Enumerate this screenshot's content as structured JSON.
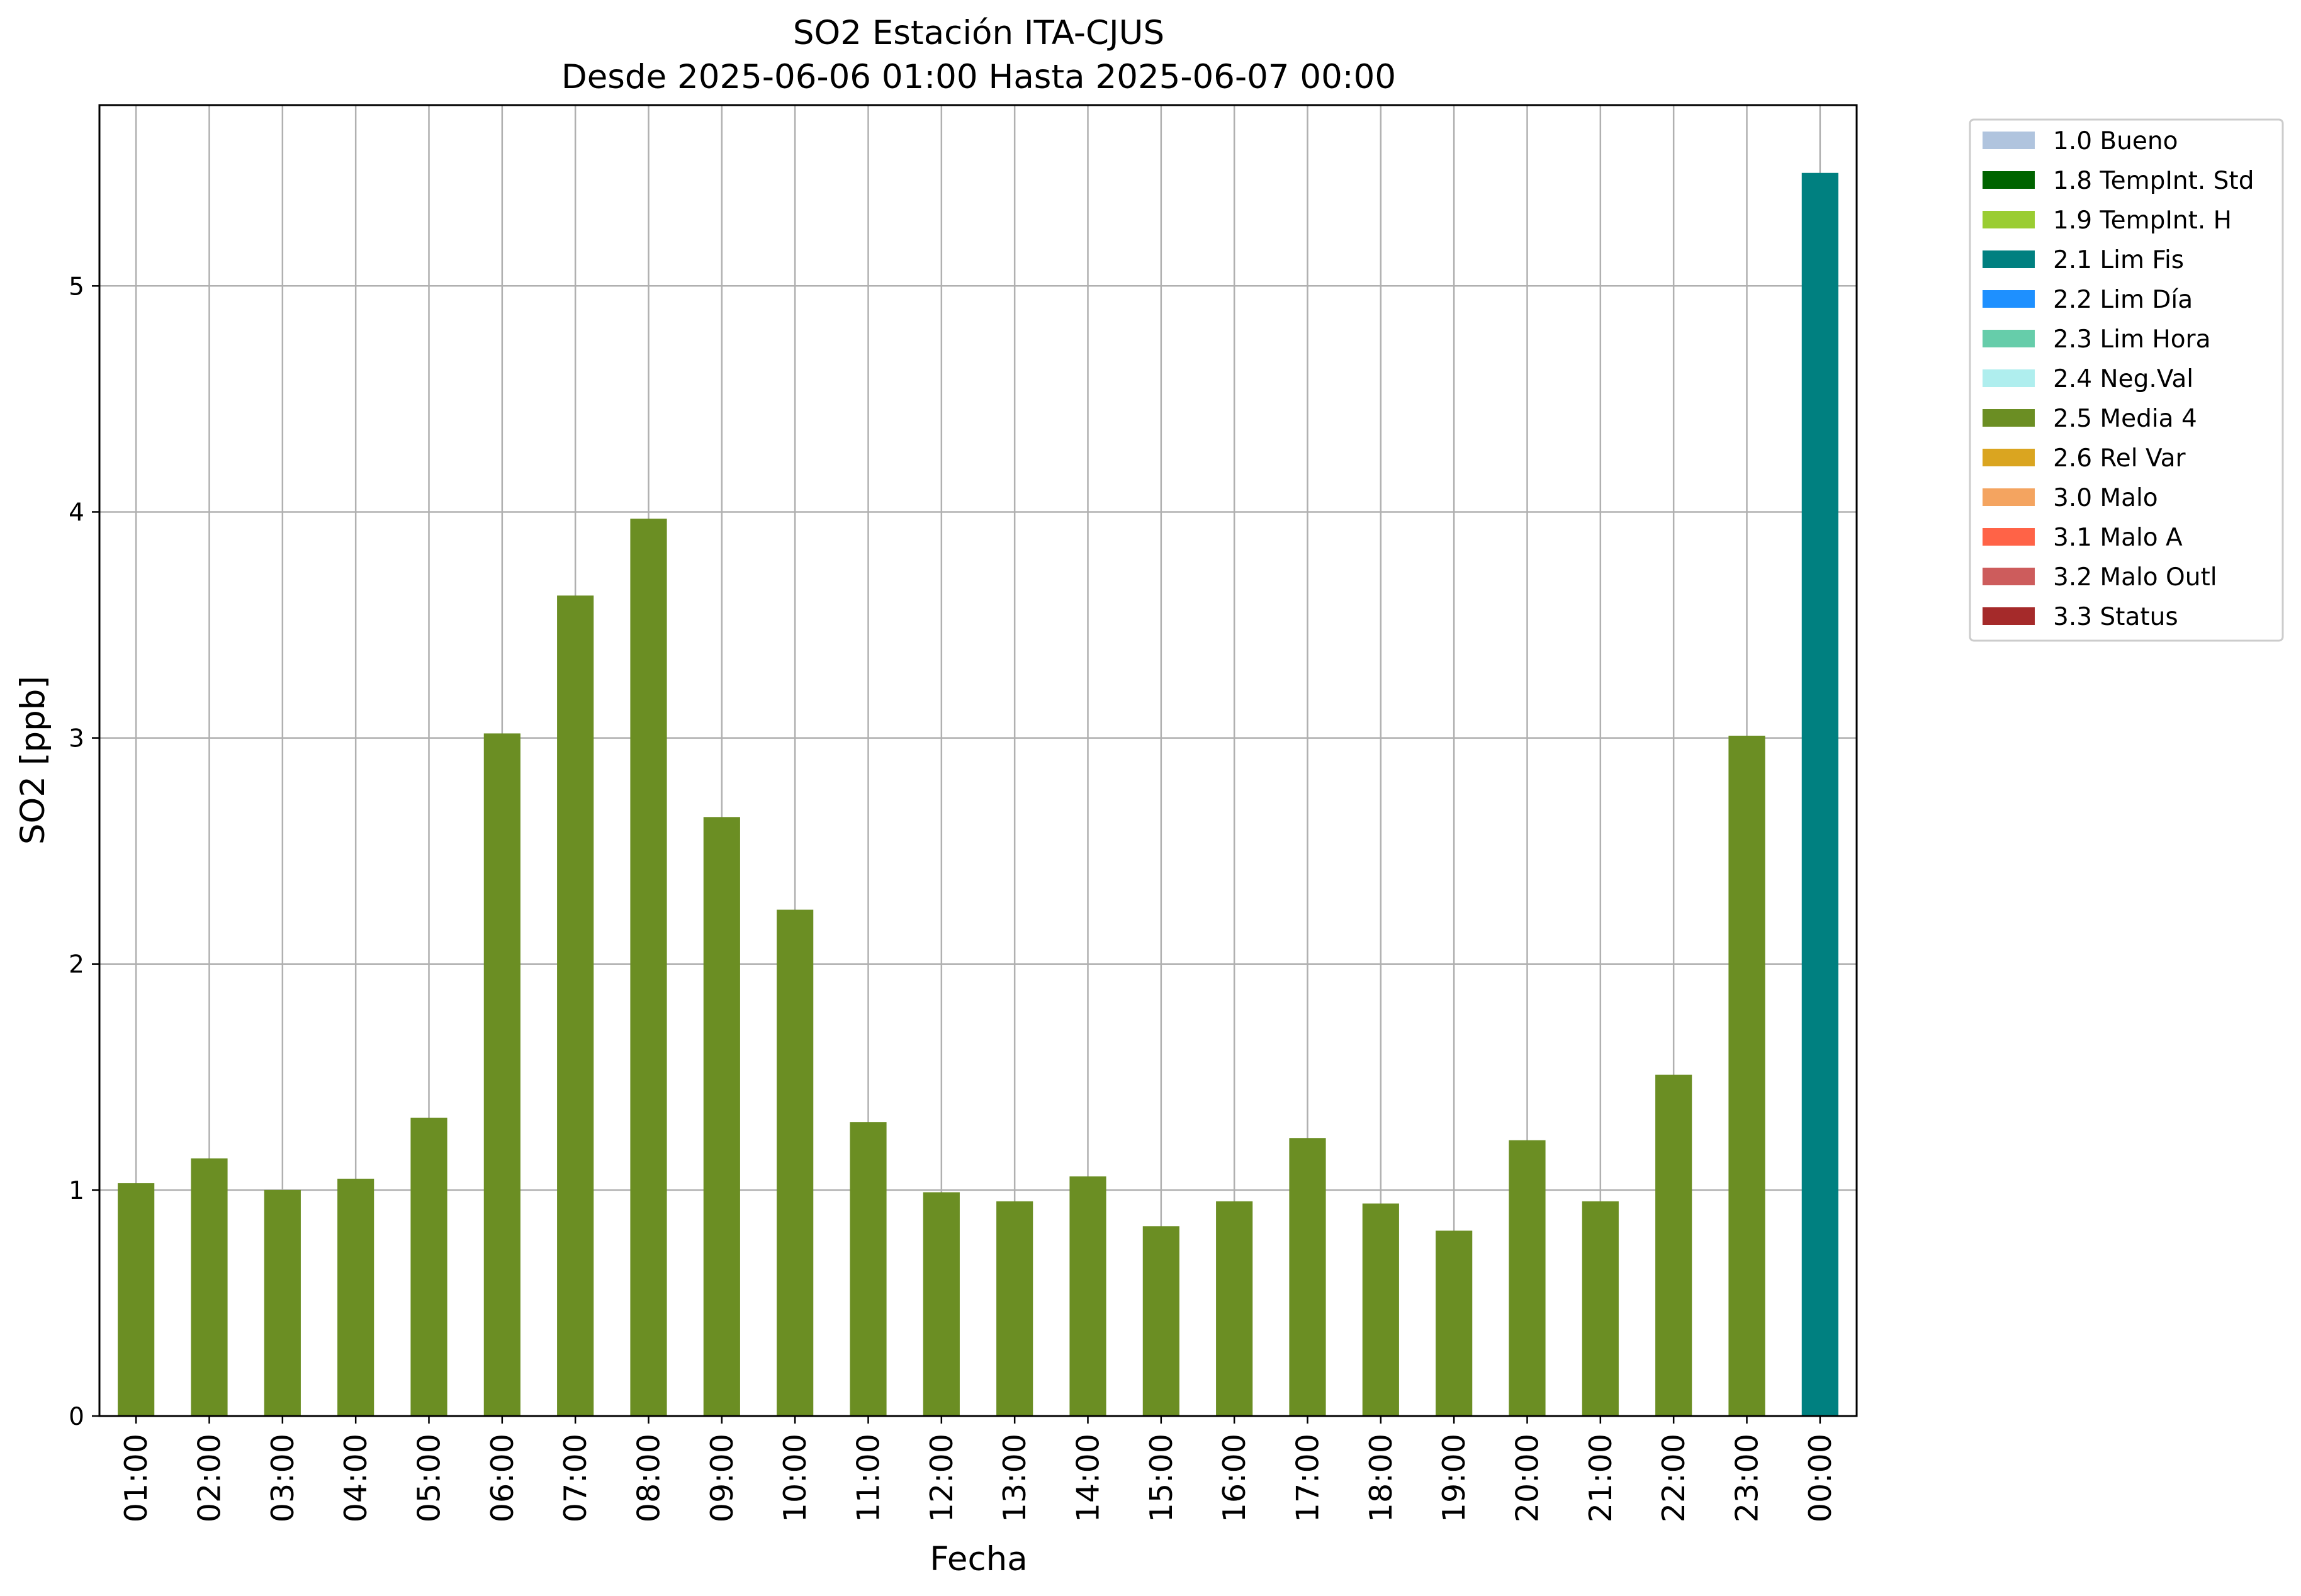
{
  "chart_data": {
    "type": "bar",
    "title": "SO2 Estación ITA-CJUS",
    "subtitle": "Desde 2025-06-06 01:00 Hasta 2025-06-07 00:00",
    "xlabel": "Fecha",
    "ylabel": "SO2 [ppb]",
    "ylim": [
      0,
      5.8
    ],
    "yticks": [
      0,
      1,
      2,
      3,
      4,
      5
    ],
    "grid": true,
    "legend_position": "outside-right",
    "categories": [
      "01:00",
      "02:00",
      "03:00",
      "04:00",
      "05:00",
      "06:00",
      "07:00",
      "08:00",
      "09:00",
      "10:00",
      "11:00",
      "12:00",
      "13:00",
      "14:00",
      "15:00",
      "16:00",
      "17:00",
      "18:00",
      "19:00",
      "20:00",
      "21:00",
      "22:00",
      "23:00",
      "00:00"
    ],
    "values": [
      1.03,
      1.14,
      1.0,
      1.05,
      1.32,
      3.02,
      3.63,
      3.97,
      2.65,
      2.24,
      1.3,
      0.99,
      0.95,
      1.06,
      0.84,
      0.95,
      1.23,
      0.94,
      0.82,
      1.22,
      0.95,
      1.51,
      3.01,
      5.5
    ],
    "flags": [
      "2.5 Media 4",
      "2.5 Media 4",
      "2.5 Media 4",
      "2.5 Media 4",
      "2.5 Media 4",
      "2.5 Media 4",
      "2.5 Media 4",
      "2.5 Media 4",
      "2.5 Media 4",
      "2.5 Media 4",
      "2.5 Media 4",
      "2.5 Media 4",
      "2.5 Media 4",
      "2.5 Media 4",
      "2.5 Media 4",
      "2.5 Media 4",
      "2.5 Media 4",
      "2.5 Media 4",
      "2.5 Media 4",
      "2.5 Media 4",
      "2.5 Media 4",
      "2.5 Media 4",
      "2.5 Media 4",
      "2.1 Lim Fis"
    ],
    "legend": [
      {
        "label": "1.0 Bueno",
        "color": "#b0c4de"
      },
      {
        "label": "1.8 TempInt. Std",
        "color": "#006400"
      },
      {
        "label": "1.9 TempInt. H",
        "color": "#9acd32"
      },
      {
        "label": "2.1 Lim Fis",
        "color": "#008080"
      },
      {
        "label": "2.2 Lim Día",
        "color": "#1e90ff"
      },
      {
        "label": "2.3 Lim Hora",
        "color": "#66cdaa"
      },
      {
        "label": "2.4 Neg.Val",
        "color": "#afeeee"
      },
      {
        "label": "2.5 Media 4",
        "color": "#6b8e23"
      },
      {
        "label": "2.6 Rel Var",
        "color": "#daa520"
      },
      {
        "label": "3.0 Malo",
        "color": "#f4a460"
      },
      {
        "label": "3.1 Malo A",
        "color": "#ff6347"
      },
      {
        "label": "3.2 Malo Outl",
        "color": "#cd5c5c"
      },
      {
        "label": "3.3 Status",
        "color": "#a52a2a"
      }
    ]
  }
}
